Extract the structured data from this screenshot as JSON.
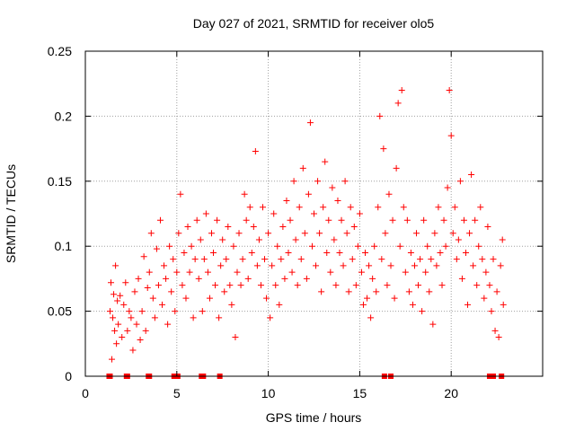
{
  "chart_data": {
    "type": "scatter",
    "title": "Day 027 of 2021, SRMTID for receiver olo5",
    "xlabel": "GPS time / hours",
    "ylabel": "SRMTID / TECUs",
    "xlim": [
      0,
      25
    ],
    "ylim": [
      0,
      0.25
    ],
    "x_ticks": [
      0,
      5,
      10,
      15,
      20
    ],
    "x_tick_labels": [
      "0",
      "5",
      "10",
      "15",
      "20"
    ],
    "y_ticks": [
      0,
      0.05,
      0.1,
      0.15,
      0.2,
      0.25
    ],
    "y_tick_labels": [
      "0",
      "0.05",
      "0.1",
      "0.15",
      "0.2",
      "0.25"
    ],
    "grid": true,
    "marker": "+",
    "color": "#ff0000",
    "series": [
      {
        "name": "SRMTID",
        "points": [
          [
            1.35,
            0.05
          ],
          [
            1.4,
            0.072
          ],
          [
            1.45,
            0.013
          ],
          [
            1.5,
            0.045
          ],
          [
            1.55,
            0.063
          ],
          [
            1.6,
            0.035
          ],
          [
            1.65,
            0.085
          ],
          [
            1.7,
            0.025
          ],
          [
            1.75,
            0.058
          ],
          [
            1.8,
            0.04
          ],
          [
            1.9,
            0.062
          ],
          [
            2.0,
            0.03
          ],
          [
            2.1,
            0.055
          ],
          [
            2.2,
            0.072
          ],
          [
            2.3,
            0.035
          ],
          [
            2.4,
            0.05
          ],
          [
            2.5,
            0.045
          ],
          [
            2.6,
            0.02
          ],
          [
            2.7,
            0.065
          ],
          [
            2.8,
            0.04
          ],
          [
            2.9,
            0.075
          ],
          [
            3.0,
            0.028
          ],
          [
            3.1,
            0.05
          ],
          [
            3.2,
            0.092
          ],
          [
            3.3,
            0.035
          ],
          [
            3.4,
            0.068
          ],
          [
            3.5,
            0.08
          ],
          [
            3.6,
            0.11
          ],
          [
            3.7,
            0.06
          ],
          [
            3.8,
            0.045
          ],
          [
            3.9,
            0.098
          ],
          [
            4.0,
            0.07
          ],
          [
            4.1,
            0.12
          ],
          [
            4.2,
            0.055
          ],
          [
            4.3,
            0.085
          ],
          [
            4.4,
            0.075
          ],
          [
            4.5,
            0.04
          ],
          [
            4.6,
            0.1
          ],
          [
            4.7,
            0.065
          ],
          [
            4.8,
            0.09
          ],
          [
            4.9,
            0.05
          ],
          [
            5.0,
            0.08
          ],
          [
            5.1,
            0.11
          ],
          [
            5.2,
            0.14
          ],
          [
            5.3,
            0.07
          ],
          [
            5.4,
            0.095
          ],
          [
            5.5,
            0.06
          ],
          [
            5.6,
            0.115
          ],
          [
            5.7,
            0.08
          ],
          [
            5.8,
            0.1
          ],
          [
            5.9,
            0.045
          ],
          [
            6.0,
            0.09
          ],
          [
            6.1,
            0.12
          ],
          [
            6.2,
            0.075
          ],
          [
            6.3,
            0.105
          ],
          [
            6.4,
            0.05
          ],
          [
            6.5,
            0.09
          ],
          [
            6.6,
            0.125
          ],
          [
            6.7,
            0.08
          ],
          [
            6.8,
            0.06
          ],
          [
            6.9,
            0.11
          ],
          [
            7.0,
            0.095
          ],
          [
            7.1,
            0.07
          ],
          [
            7.2,
            0.12
          ],
          [
            7.3,
            0.045
          ],
          [
            7.4,
            0.085
          ],
          [
            7.5,
            0.105
          ],
          [
            7.6,
            0.065
          ],
          [
            7.7,
            0.09
          ],
          [
            7.8,
            0.115
          ],
          [
            7.9,
            0.07
          ],
          [
            8.0,
            0.055
          ],
          [
            8.1,
            0.1
          ],
          [
            8.2,
            0.03
          ],
          [
            8.3,
            0.08
          ],
          [
            8.4,
            0.11
          ],
          [
            8.5,
            0.07
          ],
          [
            8.6,
            0.09
          ],
          [
            8.7,
            0.14
          ],
          [
            8.8,
            0.12
          ],
          [
            8.9,
            0.075
          ],
          [
            9.0,
            0.13
          ],
          [
            9.1,
            0.095
          ],
          [
            9.2,
            0.115
          ],
          [
            9.3,
            0.173
          ],
          [
            9.4,
            0.085
          ],
          [
            9.5,
            0.105
          ],
          [
            9.6,
            0.07
          ],
          [
            9.7,
            0.13
          ],
          [
            9.8,
            0.09
          ],
          [
            9.9,
            0.06
          ],
          [
            10.0,
            0.11
          ],
          [
            10.1,
            0.045
          ],
          [
            10.2,
            0.085
          ],
          [
            10.3,
            0.125
          ],
          [
            10.4,
            0.07
          ],
          [
            10.5,
            0.1
          ],
          [
            10.6,
            0.055
          ],
          [
            10.7,
            0.09
          ],
          [
            10.8,
            0.115
          ],
          [
            10.9,
            0.075
          ],
          [
            11.0,
            0.135
          ],
          [
            11.1,
            0.095
          ],
          [
            11.2,
            0.12
          ],
          [
            11.3,
            0.08
          ],
          [
            11.4,
            0.15
          ],
          [
            11.5,
            0.105
          ],
          [
            11.6,
            0.07
          ],
          [
            11.7,
            0.13
          ],
          [
            11.8,
            0.09
          ],
          [
            11.9,
            0.16
          ],
          [
            12.0,
            0.11
          ],
          [
            12.1,
            0.075
          ],
          [
            12.2,
            0.14
          ],
          [
            12.3,
            0.195
          ],
          [
            12.4,
            0.1
          ],
          [
            12.5,
            0.125
          ],
          [
            12.6,
            0.085
          ],
          [
            12.7,
            0.15
          ],
          [
            12.8,
            0.11
          ],
          [
            12.9,
            0.065
          ],
          [
            13.0,
            0.13
          ],
          [
            13.1,
            0.165
          ],
          [
            13.2,
            0.095
          ],
          [
            13.3,
            0.12
          ],
          [
            13.4,
            0.08
          ],
          [
            13.5,
            0.145
          ],
          [
            13.6,
            0.105
          ],
          [
            13.7,
            0.07
          ],
          [
            13.8,
            0.135
          ],
          [
            13.9,
            0.095
          ],
          [
            14.0,
            0.12
          ],
          [
            14.1,
            0.085
          ],
          [
            14.2,
            0.15
          ],
          [
            14.3,
            0.11
          ],
          [
            14.4,
            0.065
          ],
          [
            14.5,
            0.13
          ],
          [
            14.6,
            0.09
          ],
          [
            14.7,
            0.115
          ],
          [
            14.8,
            0.07
          ],
          [
            14.9,
            0.1
          ],
          [
            15.0,
            0.125
          ],
          [
            15.1,
            0.08
          ],
          [
            15.2,
            0.055
          ],
          [
            15.3,
            0.095
          ],
          [
            15.4,
            0.06
          ],
          [
            15.5,
            0.085
          ],
          [
            15.6,
            0.045
          ],
          [
            15.7,
            0.075
          ],
          [
            15.8,
            0.1
          ],
          [
            15.9,
            0.065
          ],
          [
            16.0,
            0.13
          ],
          [
            16.1,
            0.2
          ],
          [
            16.2,
            0.09
          ],
          [
            16.3,
            0.175
          ],
          [
            16.4,
            0.11
          ],
          [
            16.5,
            0.07
          ],
          [
            16.6,
            0.14
          ],
          [
            16.7,
            0.085
          ],
          [
            16.8,
            0.12
          ],
          [
            16.9,
            0.06
          ],
          [
            17.0,
            0.16
          ],
          [
            17.1,
            0.21
          ],
          [
            17.2,
            0.1
          ],
          [
            17.3,
            0.22
          ],
          [
            17.4,
            0.13
          ],
          [
            17.5,
            0.08
          ],
          [
            17.6,
            0.12
          ],
          [
            17.7,
            0.065
          ],
          [
            17.8,
            0.095
          ],
          [
            17.9,
            0.055
          ],
          [
            18.0,
            0.085
          ],
          [
            18.1,
            0.11
          ],
          [
            18.2,
            0.07
          ],
          [
            18.3,
            0.09
          ],
          [
            18.4,
            0.05
          ],
          [
            18.5,
            0.12
          ],
          [
            18.6,
            0.08
          ],
          [
            18.7,
            0.1
          ],
          [
            18.8,
            0.065
          ],
          [
            18.9,
            0.09
          ],
          [
            19.0,
            0.04
          ],
          [
            19.1,
            0.11
          ],
          [
            19.2,
            0.085
          ],
          [
            19.3,
            0.13
          ],
          [
            19.4,
            0.095
          ],
          [
            19.5,
            0.07
          ],
          [
            19.6,
            0.12
          ],
          [
            19.7,
            0.1
          ],
          [
            19.8,
            0.145
          ],
          [
            19.9,
            0.22
          ],
          [
            20.0,
            0.185
          ],
          [
            20.1,
            0.11
          ],
          [
            20.2,
            0.13
          ],
          [
            20.3,
            0.09
          ],
          [
            20.4,
            0.105
          ],
          [
            20.5,
            0.15
          ],
          [
            20.6,
            0.075
          ],
          [
            20.7,
            0.12
          ],
          [
            20.8,
            0.095
          ],
          [
            20.9,
            0.055
          ],
          [
            21.0,
            0.11
          ],
          [
            21.1,
            0.155
          ],
          [
            21.2,
            0.085
          ],
          [
            21.3,
            0.12
          ],
          [
            21.4,
            0.07
          ],
          [
            21.5,
            0.1
          ],
          [
            21.6,
            0.13
          ],
          [
            21.7,
            0.09
          ],
          [
            21.8,
            0.06
          ],
          [
            21.9,
            0.08
          ],
          [
            22.0,
            0.115
          ],
          [
            22.1,
            0.07
          ],
          [
            22.2,
            0.05
          ],
          [
            22.3,
            0.09
          ],
          [
            22.4,
            0.035
          ],
          [
            22.5,
            0.065
          ],
          [
            22.6,
            0.03
          ],
          [
            22.7,
            0.085
          ],
          [
            22.8,
            0.105
          ],
          [
            22.85,
            0.055
          ]
        ]
      }
    ],
    "baseline_markers": [
      1.3,
      1.35,
      2.25,
      2.3,
      3.45,
      3.5,
      4.85,
      4.9,
      5.0,
      5.05,
      6.35,
      6.45,
      7.35,
      16.35,
      16.7,
      22.1,
      22.2,
      22.3,
      22.75
    ]
  }
}
